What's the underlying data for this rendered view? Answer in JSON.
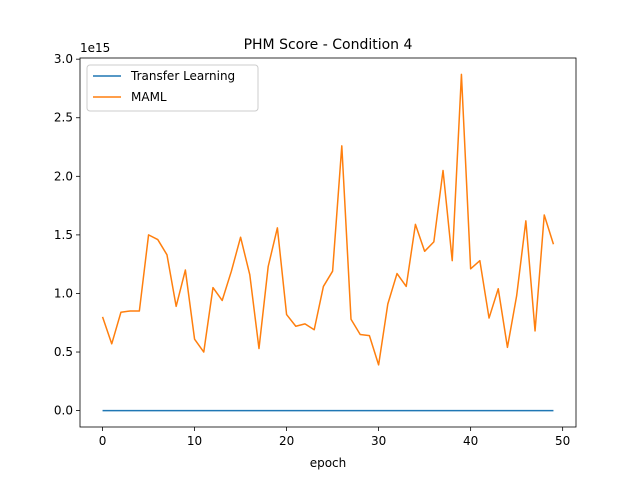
{
  "chart_data": {
    "type": "line",
    "title": "PHM Score - Condition 4",
    "xlabel": "epoch",
    "ylabel": "",
    "offset_text": "1e15",
    "xlim": [
      -2.45,
      51.45
    ],
    "ylim": [
      -0.14,
      3.01
    ],
    "xticks": [
      0,
      10,
      20,
      30,
      40,
      50
    ],
    "yticks": [
      0.0,
      0.5,
      1.0,
      1.5,
      2.0,
      2.5,
      3.0
    ],
    "ytick_labels": [
      "0.0",
      "0.5",
      "1.0",
      "1.5",
      "2.0",
      "2.5",
      "3.0"
    ],
    "legend_position": "upper-left",
    "grid": false,
    "x": [
      0,
      1,
      2,
      3,
      4,
      5,
      6,
      7,
      8,
      9,
      10,
      11,
      12,
      13,
      14,
      15,
      16,
      17,
      18,
      19,
      20,
      21,
      22,
      23,
      24,
      25,
      26,
      27,
      28,
      29,
      30,
      31,
      32,
      33,
      34,
      35,
      36,
      37,
      38,
      39,
      40,
      41,
      42,
      43,
      44,
      45,
      46,
      47,
      48,
      49
    ],
    "series": [
      {
        "name": "Transfer Learning",
        "color": "#1f77b4",
        "values": [
          0,
          0,
          0,
          0,
          0,
          0,
          0,
          0,
          0,
          0,
          0,
          0,
          0,
          0,
          0,
          0,
          0,
          0,
          0,
          0,
          0,
          0,
          0,
          0,
          0,
          0,
          0,
          0,
          0,
          0,
          0,
          0,
          0,
          0,
          0,
          0,
          0,
          0,
          0,
          0,
          0,
          0,
          0,
          0,
          0,
          0,
          0,
          0,
          0,
          0
        ]
      },
      {
        "name": "MAML",
        "color": "#ff7f0e",
        "values": [
          0.8,
          0.57,
          0.84,
          0.85,
          0.85,
          1.5,
          1.46,
          1.33,
          0.89,
          1.2,
          0.61,
          0.5,
          1.05,
          0.94,
          1.19,
          1.48,
          1.16,
          0.53,
          1.23,
          1.56,
          0.82,
          0.72,
          0.74,
          0.69,
          1.06,
          1.19,
          2.26,
          0.78,
          0.65,
          0.64,
          0.39,
          0.91,
          1.17,
          1.06,
          1.59,
          1.36,
          1.44,
          2.05,
          1.28,
          2.87,
          1.21,
          1.28,
          0.79,
          1.04,
          0.54,
          0.98,
          1.62,
          0.68,
          1.67,
          1.42
        ]
      }
    ]
  }
}
